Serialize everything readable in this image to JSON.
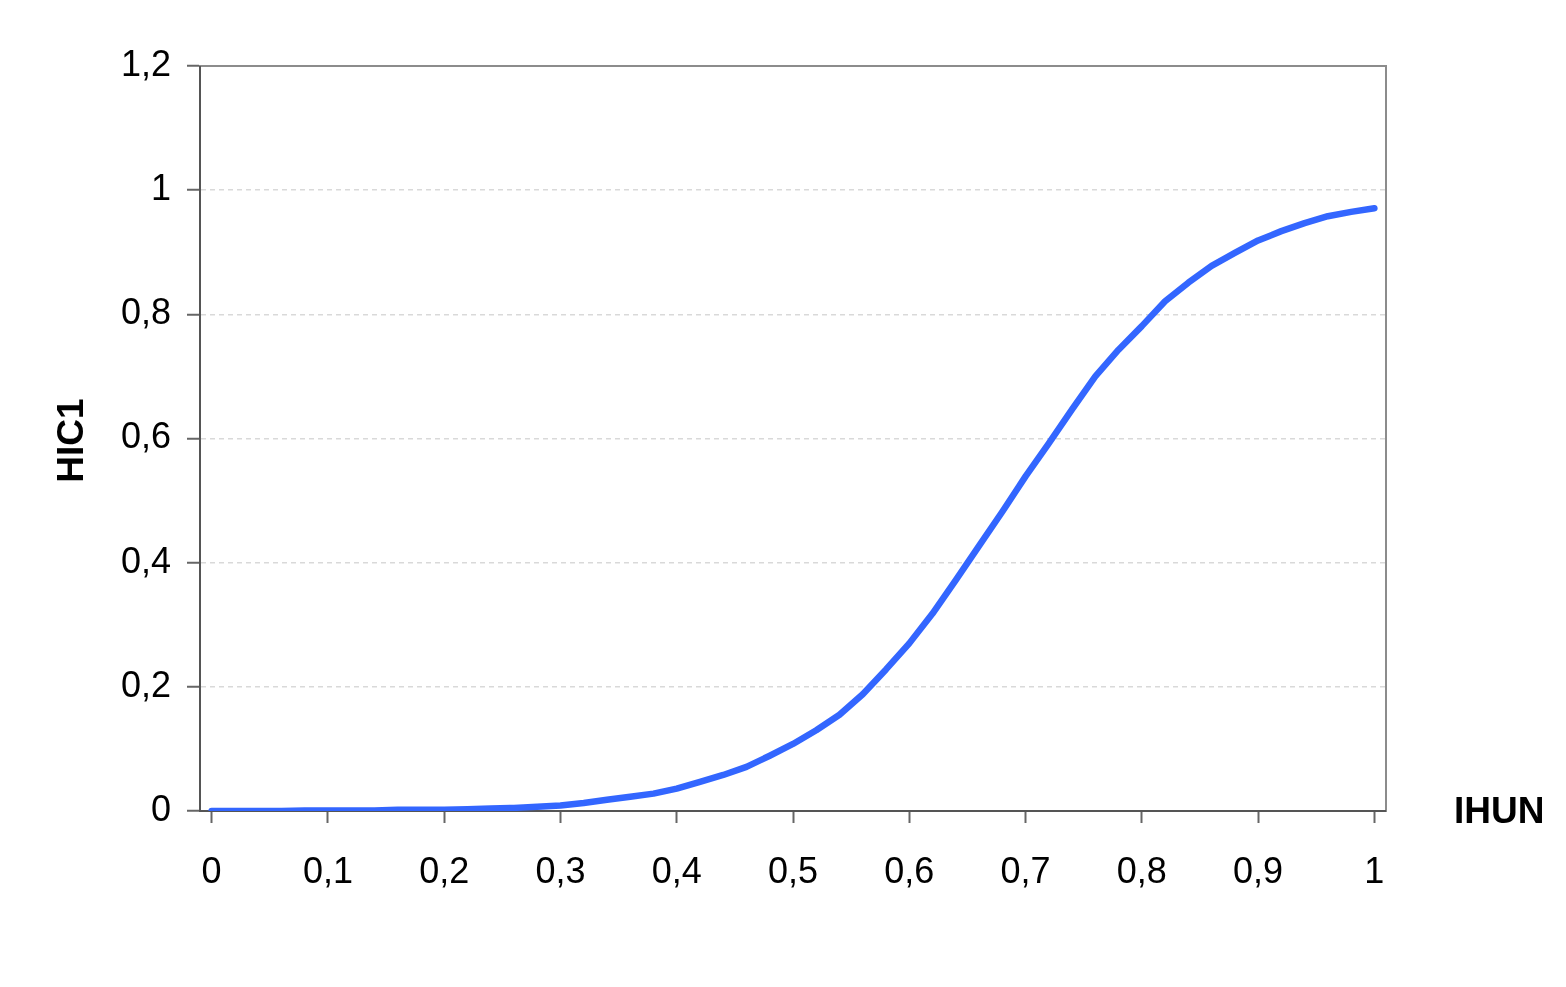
{
  "chart_data": {
    "type": "line",
    "xlabel": "IHUN",
    "ylabel": "HIC1",
    "x": [
      0,
      0.02,
      0.04,
      0.06,
      0.08,
      0.1,
      0.12,
      0.14,
      0.16,
      0.18,
      0.2,
      0.22,
      0.24,
      0.26,
      0.28,
      0.3,
      0.32,
      0.34,
      0.36,
      0.38,
      0.4,
      0.42,
      0.44,
      0.46,
      0.48,
      0.5,
      0.52,
      0.54,
      0.56,
      0.58,
      0.6,
      0.62,
      0.64,
      0.66,
      0.68,
      0.7,
      0.72,
      0.74,
      0.76,
      0.78,
      0.8,
      0.82,
      0.84,
      0.86,
      0.88,
      0.9,
      0.92,
      0.94,
      0.96,
      0.98,
      1
    ],
    "values": [
      0,
      0,
      0,
      0,
      0.001,
      0.001,
      0.001,
      0.001,
      0.002,
      0.002,
      0.002,
      0.003,
      0.004,
      0.005,
      0.007,
      0.009,
      0.013,
      0.018,
      0.023,
      0.028,
      0.036,
      0.047,
      0.058,
      0.071,
      0.089,
      0.108,
      0.13,
      0.155,
      0.188,
      0.228,
      0.27,
      0.318,
      0.372,
      0.427,
      0.482,
      0.539,
      0.592,
      0.647,
      0.7,
      0.743,
      0.781,
      0.821,
      0.851,
      0.878,
      0.899,
      0.919,
      0.934,
      0.947,
      0.958,
      0.965,
      0.971
    ],
    "color": "#3366ff",
    "xlim": [
      -0.01,
      1.01
    ],
    "xticks": [
      0,
      {
        "value": 0.1,
        "label": "0,1"
      },
      {
        "value": 0.2,
        "label": "0,2"
      },
      {
        "value": 0.3,
        "label": "0,3"
      },
      {
        "value": 0.4,
        "label": "0,4"
      },
      {
        "value": 0.5,
        "label": "0,5"
      },
      {
        "value": 0.6,
        "label": "0,6"
      },
      {
        "value": 0.7,
        "label": "0,7"
      },
      {
        "value": 0.8,
        "label": "0,8"
      },
      {
        "value": 0.9,
        "label": "0,9"
      },
      1
    ],
    "ylim": [
      0,
      1.2
    ],
    "yticks": [
      0,
      {
        "value": 0.2,
        "label": "0,2"
      },
      {
        "value": 0.4,
        "label": "0,4"
      },
      {
        "value": 0.6,
        "label": "0,6"
      },
      {
        "value": 0.8,
        "label": "0,8"
      },
      1,
      {
        "value": 1.2,
        "label": "1,2"
      }
    ],
    "grid": "y"
  }
}
